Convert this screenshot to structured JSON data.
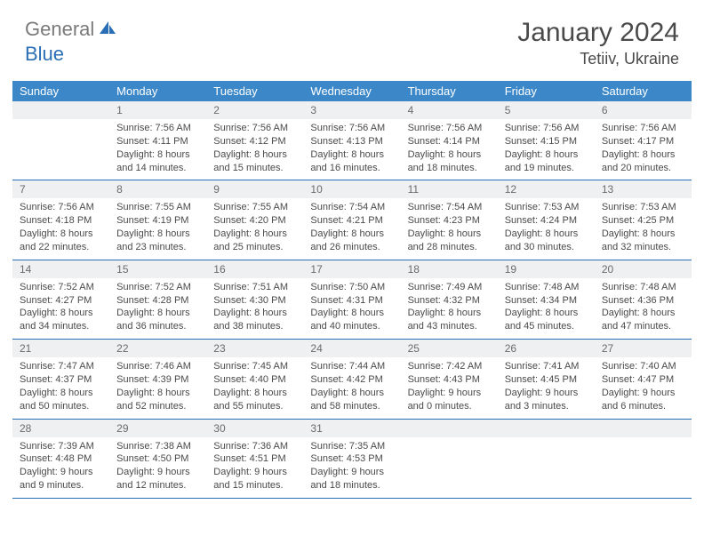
{
  "brand": {
    "part1": "General",
    "part2": "Blue"
  },
  "title": "January 2024",
  "location": "Tetiiv, Ukraine",
  "colors": {
    "header_bg": "#3b87c8",
    "header_text": "#ffffff",
    "rule": "#2a6fb5",
    "daynum_bg": "#eef0f1",
    "text": "#4a4a4a",
    "logo_gray": "#7a7a7a",
    "logo_blue": "#2a6fb5"
  },
  "fonts": {
    "title_size": 30,
    "location_size": 18,
    "dayhead_size": 13,
    "daynum_size": 12,
    "body_size": 11
  },
  "daynames": [
    "Sunday",
    "Monday",
    "Tuesday",
    "Wednesday",
    "Thursday",
    "Friday",
    "Saturday"
  ],
  "weeks": [
    [
      null,
      {
        "n": "1",
        "l1": "Sunrise: 7:56 AM",
        "l2": "Sunset: 4:11 PM",
        "l3": "Daylight: 8 hours",
        "l4": "and 14 minutes."
      },
      {
        "n": "2",
        "l1": "Sunrise: 7:56 AM",
        "l2": "Sunset: 4:12 PM",
        "l3": "Daylight: 8 hours",
        "l4": "and 15 minutes."
      },
      {
        "n": "3",
        "l1": "Sunrise: 7:56 AM",
        "l2": "Sunset: 4:13 PM",
        "l3": "Daylight: 8 hours",
        "l4": "and 16 minutes."
      },
      {
        "n": "4",
        "l1": "Sunrise: 7:56 AM",
        "l2": "Sunset: 4:14 PM",
        "l3": "Daylight: 8 hours",
        "l4": "and 18 minutes."
      },
      {
        "n": "5",
        "l1": "Sunrise: 7:56 AM",
        "l2": "Sunset: 4:15 PM",
        "l3": "Daylight: 8 hours",
        "l4": "and 19 minutes."
      },
      {
        "n": "6",
        "l1": "Sunrise: 7:56 AM",
        "l2": "Sunset: 4:17 PM",
        "l3": "Daylight: 8 hours",
        "l4": "and 20 minutes."
      }
    ],
    [
      {
        "n": "7",
        "l1": "Sunrise: 7:56 AM",
        "l2": "Sunset: 4:18 PM",
        "l3": "Daylight: 8 hours",
        "l4": "and 22 minutes."
      },
      {
        "n": "8",
        "l1": "Sunrise: 7:55 AM",
        "l2": "Sunset: 4:19 PM",
        "l3": "Daylight: 8 hours",
        "l4": "and 23 minutes."
      },
      {
        "n": "9",
        "l1": "Sunrise: 7:55 AM",
        "l2": "Sunset: 4:20 PM",
        "l3": "Daylight: 8 hours",
        "l4": "and 25 minutes."
      },
      {
        "n": "10",
        "l1": "Sunrise: 7:54 AM",
        "l2": "Sunset: 4:21 PM",
        "l3": "Daylight: 8 hours",
        "l4": "and 26 minutes."
      },
      {
        "n": "11",
        "l1": "Sunrise: 7:54 AM",
        "l2": "Sunset: 4:23 PM",
        "l3": "Daylight: 8 hours",
        "l4": "and 28 minutes."
      },
      {
        "n": "12",
        "l1": "Sunrise: 7:53 AM",
        "l2": "Sunset: 4:24 PM",
        "l3": "Daylight: 8 hours",
        "l4": "and 30 minutes."
      },
      {
        "n": "13",
        "l1": "Sunrise: 7:53 AM",
        "l2": "Sunset: 4:25 PM",
        "l3": "Daylight: 8 hours",
        "l4": "and 32 minutes."
      }
    ],
    [
      {
        "n": "14",
        "l1": "Sunrise: 7:52 AM",
        "l2": "Sunset: 4:27 PM",
        "l3": "Daylight: 8 hours",
        "l4": "and 34 minutes."
      },
      {
        "n": "15",
        "l1": "Sunrise: 7:52 AM",
        "l2": "Sunset: 4:28 PM",
        "l3": "Daylight: 8 hours",
        "l4": "and 36 minutes."
      },
      {
        "n": "16",
        "l1": "Sunrise: 7:51 AM",
        "l2": "Sunset: 4:30 PM",
        "l3": "Daylight: 8 hours",
        "l4": "and 38 minutes."
      },
      {
        "n": "17",
        "l1": "Sunrise: 7:50 AM",
        "l2": "Sunset: 4:31 PM",
        "l3": "Daylight: 8 hours",
        "l4": "and 40 minutes."
      },
      {
        "n": "18",
        "l1": "Sunrise: 7:49 AM",
        "l2": "Sunset: 4:32 PM",
        "l3": "Daylight: 8 hours",
        "l4": "and 43 minutes."
      },
      {
        "n": "19",
        "l1": "Sunrise: 7:48 AM",
        "l2": "Sunset: 4:34 PM",
        "l3": "Daylight: 8 hours",
        "l4": "and 45 minutes."
      },
      {
        "n": "20",
        "l1": "Sunrise: 7:48 AM",
        "l2": "Sunset: 4:36 PM",
        "l3": "Daylight: 8 hours",
        "l4": "and 47 minutes."
      }
    ],
    [
      {
        "n": "21",
        "l1": "Sunrise: 7:47 AM",
        "l2": "Sunset: 4:37 PM",
        "l3": "Daylight: 8 hours",
        "l4": "and 50 minutes."
      },
      {
        "n": "22",
        "l1": "Sunrise: 7:46 AM",
        "l2": "Sunset: 4:39 PM",
        "l3": "Daylight: 8 hours",
        "l4": "and 52 minutes."
      },
      {
        "n": "23",
        "l1": "Sunrise: 7:45 AM",
        "l2": "Sunset: 4:40 PM",
        "l3": "Daylight: 8 hours",
        "l4": "and 55 minutes."
      },
      {
        "n": "24",
        "l1": "Sunrise: 7:44 AM",
        "l2": "Sunset: 4:42 PM",
        "l3": "Daylight: 8 hours",
        "l4": "and 58 minutes."
      },
      {
        "n": "25",
        "l1": "Sunrise: 7:42 AM",
        "l2": "Sunset: 4:43 PM",
        "l3": "Daylight: 9 hours",
        "l4": "and 0 minutes."
      },
      {
        "n": "26",
        "l1": "Sunrise: 7:41 AM",
        "l2": "Sunset: 4:45 PM",
        "l3": "Daylight: 9 hours",
        "l4": "and 3 minutes."
      },
      {
        "n": "27",
        "l1": "Sunrise: 7:40 AM",
        "l2": "Sunset: 4:47 PM",
        "l3": "Daylight: 9 hours",
        "l4": "and 6 minutes."
      }
    ],
    [
      {
        "n": "28",
        "l1": "Sunrise: 7:39 AM",
        "l2": "Sunset: 4:48 PM",
        "l3": "Daylight: 9 hours",
        "l4": "and 9 minutes."
      },
      {
        "n": "29",
        "l1": "Sunrise: 7:38 AM",
        "l2": "Sunset: 4:50 PM",
        "l3": "Daylight: 9 hours",
        "l4": "and 12 minutes."
      },
      {
        "n": "30",
        "l1": "Sunrise: 7:36 AM",
        "l2": "Sunset: 4:51 PM",
        "l3": "Daylight: 9 hours",
        "l4": "and 15 minutes."
      },
      {
        "n": "31",
        "l1": "Sunrise: 7:35 AM",
        "l2": "Sunset: 4:53 PM",
        "l3": "Daylight: 9 hours",
        "l4": "and 18 minutes."
      },
      null,
      null,
      null
    ]
  ]
}
